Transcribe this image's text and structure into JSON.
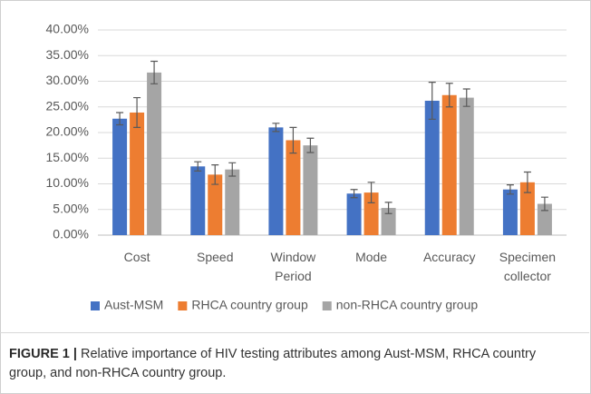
{
  "chart_data": {
    "type": "bar",
    "categories": [
      "Cost",
      "Speed",
      "Window Period",
      "Mode",
      "Accuracy",
      "Specimen collector"
    ],
    "series": [
      {
        "name": "Aust-MSM",
        "color": "#4472c4",
        "values": [
          22.7,
          13.4,
          21.0,
          8.1,
          26.2,
          8.9
        ],
        "errors": [
          1.2,
          0.9,
          0.8,
          0.8,
          3.6,
          0.9
        ]
      },
      {
        "name": "RHCA country group",
        "color": "#ed7d31",
        "values": [
          23.9,
          11.8,
          18.5,
          8.3,
          27.3,
          10.3
        ],
        "errors": [
          2.9,
          1.9,
          2.5,
          2.0,
          2.3,
          2.0
        ]
      },
      {
        "name": "non-RHCA country group",
        "color": "#a5a5a5",
        "values": [
          31.7,
          12.8,
          17.5,
          5.3,
          26.8,
          6.1
        ],
        "errors": [
          2.2,
          1.3,
          1.4,
          1.1,
          1.7,
          1.3
        ]
      }
    ],
    "ylim": [
      0,
      40
    ],
    "yticks": [
      {
        "value": 0,
        "label": "0.00%"
      },
      {
        "value": 5,
        "label": "5.00%"
      },
      {
        "value": 10,
        "label": "10.00%"
      },
      {
        "value": 15,
        "label": "15.00%"
      },
      {
        "value": 20,
        "label": "20.00%"
      },
      {
        "value": 25,
        "label": "25.00%"
      },
      {
        "value": 30,
        "label": "30.00%"
      },
      {
        "value": 35,
        "label": "35.00%"
      },
      {
        "value": 40,
        "label": "40.00%"
      }
    ],
    "grid": true,
    "legend": "bottom"
  },
  "caption": {
    "label": "FIGURE 1 |",
    "text": "Relative importance of HIV testing attributes among Aust-MSM, RHCA country group, and non-RHCA country group."
  }
}
